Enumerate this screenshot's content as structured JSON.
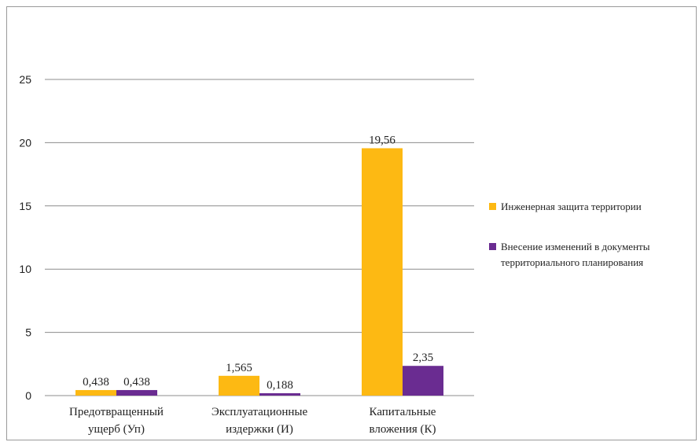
{
  "chart_data": {
    "type": "bar",
    "categories": [
      [
        "Предотвращенный",
        "ущерб (Уп)"
      ],
      [
        "Эксплуатационные",
        "издержки (И)"
      ],
      [
        "Капитальные",
        "вложения (К)"
      ]
    ],
    "series": [
      {
        "name": [
          "Инженерная  защита территории"
        ],
        "color": "#FDB913",
        "values": [
          0.438,
          1.565,
          19.56
        ],
        "labels": [
          "0,438",
          "1,565",
          "19,56"
        ]
      },
      {
        "name": [
          "Внесение  изменений  в документы",
          "территориального  планирования"
        ],
        "color": "#6A2C91",
        "values": [
          0.438,
          0.188,
          2.35
        ],
        "labels": [
          "0,438",
          "0,188",
          "2,35"
        ]
      }
    ],
    "ylim": [
      0,
      25
    ],
    "yticks": [
      0,
      5,
      10,
      15,
      20,
      25
    ],
    "ytick_labels": [
      "0",
      "5",
      "10",
      "15",
      "20",
      "25"
    ],
    "grid": true,
    "legend": "right"
  }
}
